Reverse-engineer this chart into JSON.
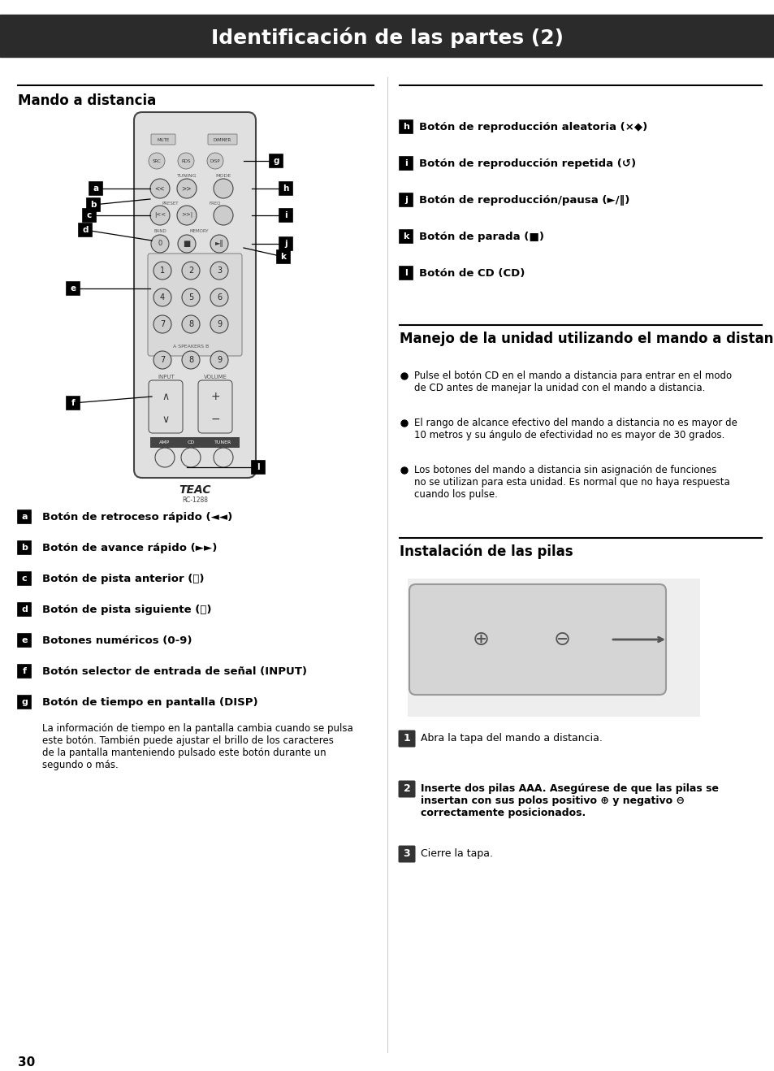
{
  "title": "Identificación de las partes (2)",
  "title_bg": "#2b2b2b",
  "title_color": "#ffffff",
  "page_bg": "#ffffff",
  "page_number": "30",
  "left_section_title": "Mando a distancia",
  "right_section1_title": "Manejo de la unidad utilizando el mando a distancia",
  "right_section2_title": "Instalación de las pilas",
  "divider_color": "#000000",
  "label_box_color": "#000000",
  "label_text_color": "#000000",
  "body_text_color": "#000000",
  "heading_color": "#000000"
}
